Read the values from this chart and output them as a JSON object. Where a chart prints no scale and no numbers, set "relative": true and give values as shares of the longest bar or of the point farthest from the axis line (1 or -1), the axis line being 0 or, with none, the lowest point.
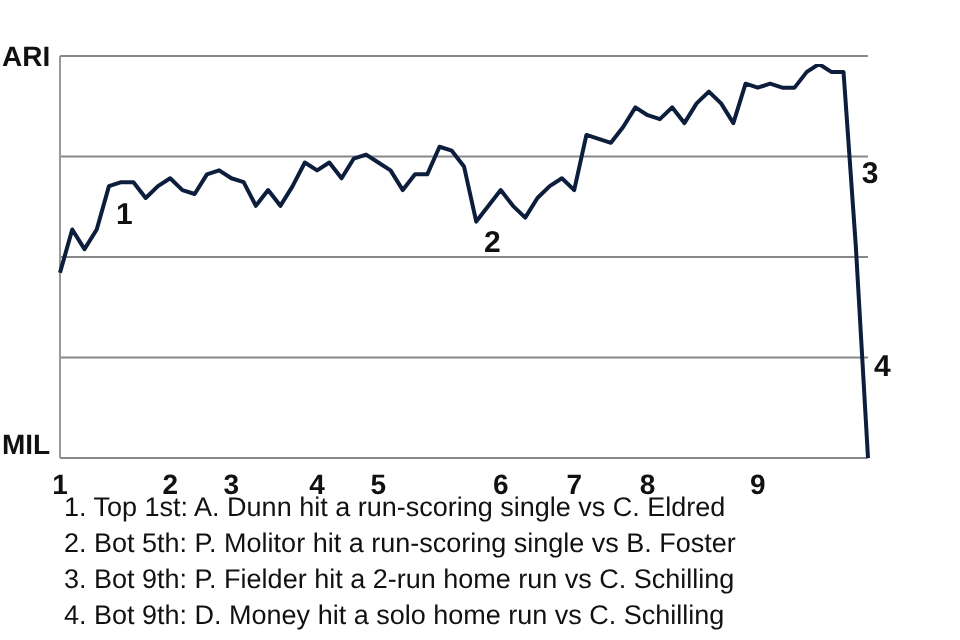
{
  "chart_data": {
    "type": "line",
    "relative": true,
    "categories": [
      "1",
      null,
      null,
      null,
      null,
      null,
      null,
      null,
      null,
      "2",
      null,
      null,
      null,
      null,
      "3",
      null,
      null,
      null,
      null,
      null,
      null,
      "4",
      null,
      null,
      null,
      null,
      "5",
      null,
      null,
      null,
      null,
      null,
      null,
      null,
      null,
      null,
      "6",
      null,
      null,
      null,
      null,
      null,
      "7",
      null,
      null,
      null,
      null,
      null,
      "8",
      null,
      null,
      null,
      null,
      null,
      null,
      null,
      null,
      "9",
      null,
      null,
      null,
      null,
      null,
      null,
      null,
      null,
      null
    ],
    "series": [
      {
        "color": "#0c1e3c",
        "values": [
          0.47,
          0.58,
          0.53,
          0.58,
          0.69,
          0.7,
          0.7,
          0.66,
          0.69,
          0.71,
          0.68,
          0.67,
          0.72,
          0.73,
          0.71,
          0.7,
          0.64,
          0.68,
          0.64,
          0.69,
          0.75,
          0.73,
          0.75,
          0.71,
          0.76,
          0.77,
          0.75,
          0.73,
          0.68,
          0.72,
          0.72,
          0.79,
          0.78,
          0.74,
          0.6,
          0.64,
          0.68,
          0.64,
          0.61,
          0.66,
          0.69,
          0.71,
          0.68,
          0.82,
          0.81,
          0.8,
          0.84,
          0.89,
          0.87,
          0.86,
          0.89,
          0.85,
          0.9,
          0.93,
          0.9,
          0.85,
          0.95,
          0.94,
          0.95,
          0.94,
          0.94,
          0.98,
          1,
          0.98,
          0.98,
          0.54,
          0
        ]
      }
    ],
    "grid": "y",
    "annotations": [
      "ARI",
      "MIL",
      "1",
      "2",
      "3",
      "4",
      "1. Top 1st: A. Dunn hit a run-scoring single vs C. Eldred",
      "2. Bot 5th: P. Molitor hit a run-scoring single vs B. Foster",
      "3. Bot 9th: P. Fielder hit a 2-run home run vs C. Schilling",
      "4. Bot 9th: D. Money hit a solo home run vs C. Schilling"
    ],
    "legend": false
  }
}
